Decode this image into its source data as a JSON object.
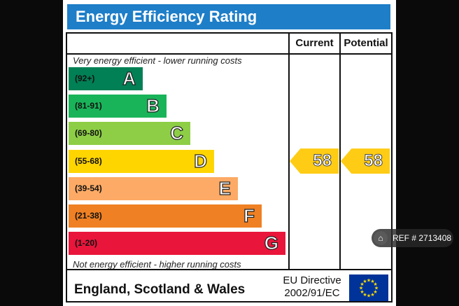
{
  "header": {
    "title": "Energy Efficiency Rating"
  },
  "columns": {
    "current": "Current",
    "potential": "Potential"
  },
  "captions": {
    "top": "Very energy efficient - lower running costs",
    "bottom": "Not energy efficient - higher running costs"
  },
  "footer": {
    "region": "England, Scotland & Wales",
    "directive_line1": "EU Directive",
    "directive_line2": "2002/91/EC"
  },
  "watermark": {
    "ref": "REF # 2713408",
    "icon": "home-icon"
  },
  "colors": {
    "A": "#008054",
    "B": "#19b459",
    "C": "#8dce46",
    "D": "#ffd500",
    "E": "#fcaa65",
    "F": "#ef8023",
    "G": "#e9153b",
    "arrow": "#fecc15",
    "title_bar": "#1e7ec8",
    "eu_flag": "#003399"
  },
  "chart_data": {
    "type": "bar",
    "title": "Energy Efficiency Rating",
    "categories": [
      "A",
      "B",
      "C",
      "D",
      "E",
      "F",
      "G"
    ],
    "ranges": [
      "(92+)",
      "(81-91)",
      "(69-80)",
      "(55-68)",
      "(39-54)",
      "(21-38)",
      "(1-20)"
    ],
    "current": {
      "label": "Current",
      "value": 58,
      "band": "D"
    },
    "potential": {
      "label": "Potential",
      "value": 58,
      "band": "D"
    }
  }
}
